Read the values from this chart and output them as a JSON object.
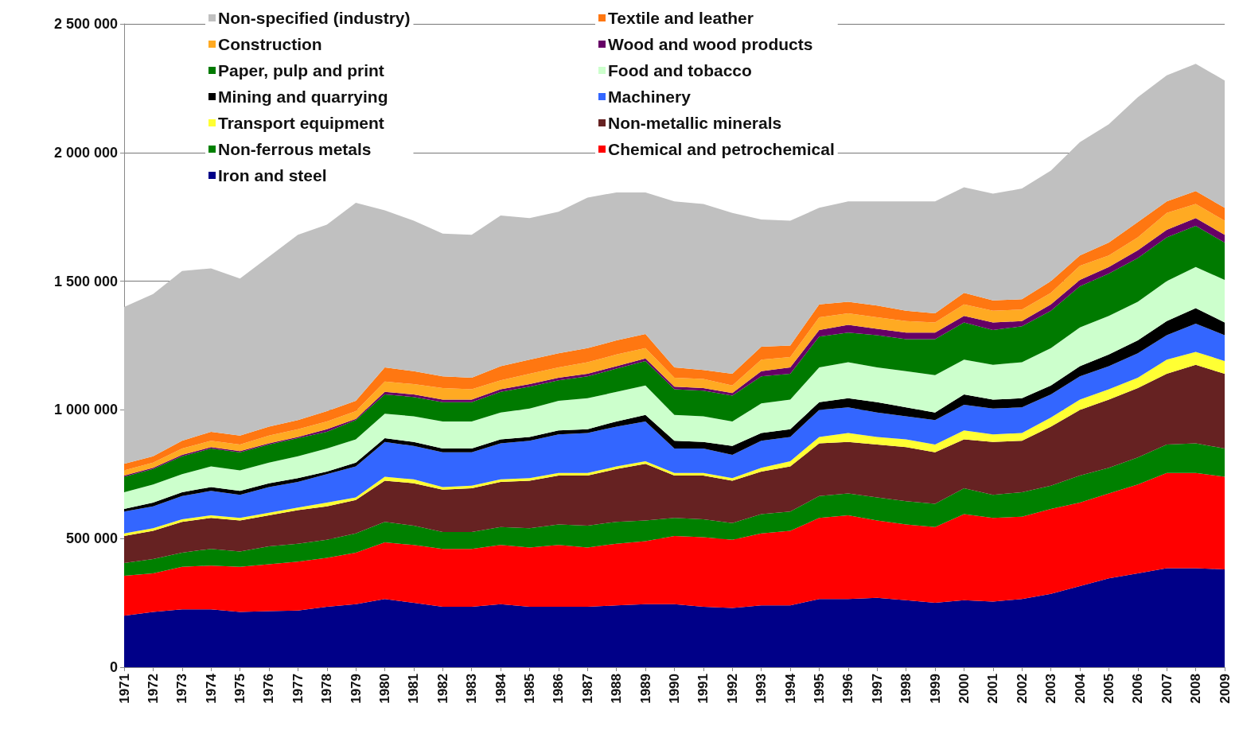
{
  "chart_data": {
    "type": "area",
    "stacked": true,
    "categories": [
      "1971",
      "1972",
      "1973",
      "1974",
      "1975",
      "1976",
      "1977",
      "1978",
      "1979",
      "1980",
      "1981",
      "1982",
      "1983",
      "1984",
      "1985",
      "1986",
      "1987",
      "1988",
      "1989",
      "1990",
      "1991",
      "1992",
      "1993",
      "1994",
      "1995",
      "1996",
      "1997",
      "1998",
      "1999",
      "2000",
      "2001",
      "2002",
      "2003",
      "2004",
      "2005",
      "2006",
      "2007",
      "2008",
      "2009"
    ],
    "ylim": [
      0,
      2500000
    ],
    "yticks": [
      {
        "value": 0,
        "label": "0"
      },
      {
        "value": 500000,
        "label": "500 000"
      },
      {
        "value": 1000000,
        "label": "1 000 000"
      },
      {
        "value": 1500000,
        "label": "1 500 000"
      },
      {
        "value": 2000000,
        "label": "2 000 000"
      },
      {
        "value": 2500000,
        "label": "2 500 000"
      }
    ],
    "grid": "y",
    "legend": "top left",
    "series": [
      {
        "name": "Iron and steel",
        "color": "#000088",
        "values": [
          200000,
          215000,
          225000,
          225000,
          215000,
          218000,
          220000,
          235000,
          245000,
          265000,
          250000,
          235000,
          235000,
          245000,
          235000,
          235000,
          235000,
          240000,
          245000,
          245000,
          235000,
          230000,
          240000,
          240000,
          265000,
          265000,
          270000,
          260000,
          250000,
          260000,
          255000,
          265000,
          285000,
          315000,
          345000,
          365000,
          385000,
          385000,
          380000
        ]
      },
      {
        "name": "Chemical and petrochemical",
        "color": "#ff0000",
        "values": [
          155000,
          150000,
          165000,
          170000,
          175000,
          182000,
          190000,
          190000,
          200000,
          220000,
          225000,
          225000,
          225000,
          230000,
          230000,
          240000,
          230000,
          240000,
          245000,
          265000,
          270000,
          265000,
          280000,
          290000,
          315000,
          325000,
          300000,
          295000,
          295000,
          335000,
          325000,
          320000,
          330000,
          325000,
          330000,
          345000,
          370000,
          370000,
          360000
        ]
      },
      {
        "name": "Non-ferrous metals",
        "color": "#008000",
        "values": [
          50000,
          55000,
          55000,
          65000,
          60000,
          70000,
          70000,
          70000,
          75000,
          80000,
          75000,
          65000,
          65000,
          70000,
          75000,
          80000,
          85000,
          85000,
          80000,
          70000,
          70000,
          65000,
          75000,
          75000,
          85000,
          85000,
          90000,
          90000,
          90000,
          100000,
          90000,
          95000,
          90000,
          105000,
          100000,
          105000,
          110000,
          115000,
          110000
        ]
      },
      {
        "name": "Non-metallic minerals",
        "color": "#662222",
        "values": [
          105000,
          110000,
          120000,
          120000,
          120000,
          120000,
          130000,
          130000,
          130000,
          160000,
          165000,
          165000,
          170000,
          175000,
          185000,
          190000,
          195000,
          205000,
          220000,
          165000,
          170000,
          165000,
          165000,
          175000,
          205000,
          200000,
          205000,
          210000,
          200000,
          190000,
          205000,
          200000,
          230000,
          255000,
          265000,
          270000,
          275000,
          305000,
          290000
        ]
      },
      {
        "name": "Transport equipment",
        "color": "#ffff33",
        "values": [
          10000,
          10000,
          10000,
          10000,
          10000,
          10000,
          10000,
          15000,
          10000,
          15000,
          15000,
          10000,
          10000,
          10000,
          10000,
          10000,
          10000,
          10000,
          10000,
          10000,
          10000,
          10000,
          15000,
          20000,
          25000,
          35000,
          30000,
          30000,
          30000,
          35000,
          30000,
          30000,
          35000,
          40000,
          40000,
          40000,
          55000,
          50000,
          50000
        ]
      },
      {
        "name": "Machinery",
        "color": "#3366ff",
        "values": [
          85000,
          85000,
          90000,
          95000,
          90000,
          100000,
          100000,
          110000,
          120000,
          135000,
          130000,
          135000,
          130000,
          140000,
          145000,
          150000,
          155000,
          155000,
          155000,
          95000,
          95000,
          90000,
          105000,
          95000,
          105000,
          100000,
          95000,
          90000,
          95000,
          100000,
          100000,
          100000,
          90000,
          90000,
          90000,
          95000,
          95000,
          110000,
          100000
        ]
      },
      {
        "name": "Mining and quarrying",
        "color": "#000000",
        "values": [
          10000,
          15000,
          15000,
          15000,
          15000,
          15000,
          15000,
          10000,
          15000,
          15000,
          15000,
          15000,
          15000,
          15000,
          15000,
          15000,
          15000,
          20000,
          25000,
          30000,
          25000,
          35000,
          30000,
          30000,
          30000,
          35000,
          40000,
          35000,
          30000,
          40000,
          35000,
          35000,
          35000,
          40000,
          45000,
          50000,
          55000,
          60000,
          50000
        ]
      },
      {
        "name": "Food and tobacco",
        "color": "#ccffcc",
        "values": [
          65000,
          70000,
          70000,
          80000,
          80000,
          80000,
          85000,
          90000,
          90000,
          95000,
          100000,
          105000,
          105000,
          105000,
          110000,
          115000,
          120000,
          115000,
          115000,
          100000,
          100000,
          95000,
          115000,
          115000,
          135000,
          140000,
          135000,
          140000,
          145000,
          135000,
          135000,
          140000,
          145000,
          150000,
          150000,
          150000,
          155000,
          160000,
          165000
        ]
      },
      {
        "name": "Paper, pulp and print",
        "color": "#007a00",
        "values": [
          60000,
          60000,
          70000,
          70000,
          70000,
          70000,
          70000,
          65000,
          75000,
          75000,
          75000,
          75000,
          75000,
          80000,
          85000,
          80000,
          85000,
          90000,
          95000,
          100000,
          100000,
          100000,
          105000,
          100000,
          120000,
          115000,
          125000,
          125000,
          140000,
          145000,
          135000,
          140000,
          145000,
          160000,
          165000,
          170000,
          170000,
          160000,
          145000
        ]
      },
      {
        "name": "Wood and wood products",
        "color": "#660066",
        "values": [
          5000,
          5000,
          5000,
          5000,
          5000,
          5000,
          5000,
          10000,
          5000,
          10000,
          10000,
          10000,
          10000,
          10000,
          10000,
          10000,
          10000,
          10000,
          10000,
          10000,
          10000,
          10000,
          20000,
          25000,
          25000,
          30000,
          25000,
          25000,
          25000,
          25000,
          30000,
          20000,
          25000,
          25000,
          25000,
          30000,
          30000,
          30000,
          30000
        ]
      },
      {
        "name": "Construction",
        "color": "#ffaa22",
        "values": [
          20000,
          20000,
          25000,
          25000,
          25000,
          30000,
          30000,
          30000,
          30000,
          40000,
          40000,
          45000,
          40000,
          35000,
          40000,
          40000,
          45000,
          45000,
          40000,
          35000,
          35000,
          30000,
          45000,
          40000,
          50000,
          45000,
          45000,
          45000,
          40000,
          45000,
          45000,
          45000,
          45000,
          55000,
          45000,
          50000,
          65000,
          55000,
          55000
        ]
      },
      {
        "name": "Textile and leather",
        "color": "#ff7711",
        "values": [
          25000,
          25000,
          30000,
          35000,
          35000,
          35000,
          35000,
          40000,
          40000,
          55000,
          50000,
          45000,
          45000,
          55000,
          55000,
          55000,
          55000,
          55000,
          55000,
          40000,
          35000,
          45000,
          50000,
          45000,
          50000,
          45000,
          45000,
          40000,
          35000,
          45000,
          40000,
          40000,
          45000,
          40000,
          50000,
          60000,
          45000,
          50000,
          50000
        ]
      },
      {
        "name": "Non-specified (industry)",
        "color": "#c0c0c0",
        "values": [
          610000,
          630000,
          660000,
          635000,
          610000,
          660000,
          720000,
          725000,
          770000,
          610000,
          585000,
          555000,
          555000,
          585000,
          550000,
          550000,
          585000,
          575000,
          550000,
          645000,
          645000,
          625000,
          495000,
          485000,
          375000,
          390000,
          405000,
          425000,
          435000,
          410000,
          415000,
          430000,
          430000,
          440000,
          460000,
          485000,
          490000,
          495000,
          495000
        ]
      }
    ]
  }
}
